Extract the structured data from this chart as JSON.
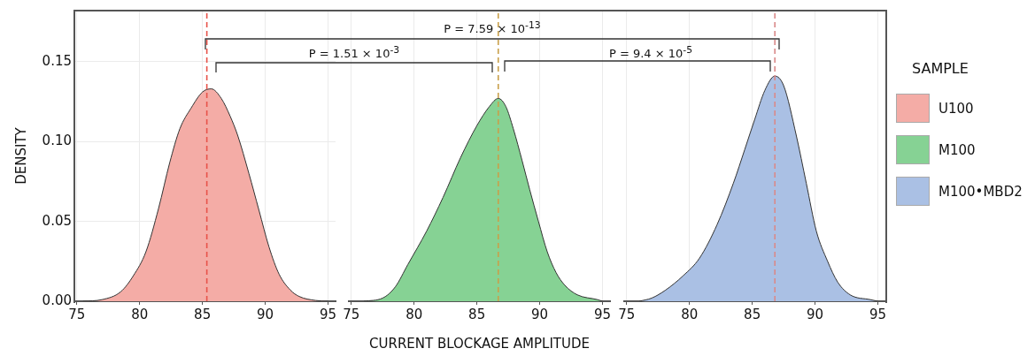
{
  "chart_data": [
    {
      "type": "area",
      "ylabel": "DENSITY",
      "xlim": [
        74.8,
        95.6
      ],
      "xticks": [
        75,
        80,
        85,
        90,
        95
      ],
      "ylim": [
        0,
        0.182
      ],
      "yticks": [
        {
          "value": 0,
          "label": "0.00"
        },
        {
          "value": 0.05,
          "label": "0.05"
        },
        {
          "value": 0.1,
          "label": "0.10"
        },
        {
          "value": 0.15,
          "label": "0.15"
        }
      ],
      "grid": true,
      "legend": "right",
      "series": [
        {
          "name": "U100",
          "color": "#f4aca6",
          "x": [
            75.5,
            77,
            78.5,
            79.5,
            80.5,
            81.5,
            82.4,
            83.2,
            84.1,
            85,
            85.7,
            86.5,
            87.2,
            87.8,
            88.7,
            89.5,
            90.3,
            91.1,
            92,
            92.7,
            94,
            95
          ],
          "values": [
            0,
            0.001,
            0.006,
            0.016,
            0.031,
            0.058,
            0.087,
            0.108,
            0.121,
            0.131,
            0.133,
            0.127,
            0.116,
            0.104,
            0.08,
            0.057,
            0.034,
            0.017,
            0.007,
            0.003,
            0.0005,
            0
          ]
        }
      ],
      "ref_lines": [
        {
          "axis": "x",
          "value": 85.35,
          "color": "#e8534a",
          "line_style": "dashed"
        }
      ]
    },
    {
      "type": "area",
      "xlabel": "CURRENT BLOCKAGE AMPLITUDE",
      "xlim": [
        74.8,
        95.6
      ],
      "xticks": [
        75,
        80,
        85,
        90,
        95
      ],
      "ylim": [
        0,
        0.182
      ],
      "grid": true,
      "legend": "right",
      "tick_labels": "x",
      "series": [
        {
          "name": "M100",
          "color": "#86d294",
          "x": [
            76,
            77.5,
            78.5,
            79.5,
            81,
            82.3,
            83.7,
            85,
            86,
            86.7,
            87.3,
            87.9,
            88.6,
            89.2,
            89.9,
            90.6,
            91.3,
            92,
            93,
            94.6,
            95
          ],
          "values": [
            0,
            0.002,
            0.009,
            0.023,
            0.044,
            0.065,
            0.09,
            0.11,
            0.122,
            0.127,
            0.122,
            0.108,
            0.088,
            0.07,
            0.05,
            0.031,
            0.018,
            0.01,
            0.004,
            0.001,
            0
          ]
        }
      ],
      "ref_lines": [
        {
          "axis": "x",
          "value": 86.7,
          "color": "#c9a04a",
          "line_style": "dashed"
        }
      ],
      "annotations": [
        "P = 7.59 × 10$^{-13}$",
        "P = 1.51 × 10$^{-3}$",
        "P = 9.4 × 10$^{-5}$"
      ]
    },
    {
      "type": "area",
      "xlim": [
        74.8,
        95.6
      ],
      "xticks": [
        75,
        80,
        85,
        90,
        95
      ],
      "ylim": [
        0,
        0.182
      ],
      "grid": true,
      "legend": "right",
      "tick_labels": "x",
      "legend_title": "SAMPLE",
      "series": [
        {
          "name": "M100•MBD2",
          "color": "#aac0e4",
          "x": [
            76,
            77,
            78.1,
            79.5,
            80.8,
            82.2,
            83.5,
            84.4,
            85.2,
            86,
            86.8,
            87.5,
            88.5,
            89.3,
            90.1,
            91,
            91.8,
            92.8,
            94.4,
            95
          ],
          "values": [
            0,
            0.002,
            0.007,
            0.016,
            0.027,
            0.048,
            0.074,
            0.095,
            0.114,
            0.132,
            0.141,
            0.135,
            0.104,
            0.074,
            0.044,
            0.025,
            0.012,
            0.004,
            0.001,
            0
          ]
        }
      ],
      "ref_lines": [
        {
          "axis": "x",
          "value": 86.8,
          "color": "#d98a8a",
          "line_style": "dashed"
        }
      ]
    }
  ]
}
